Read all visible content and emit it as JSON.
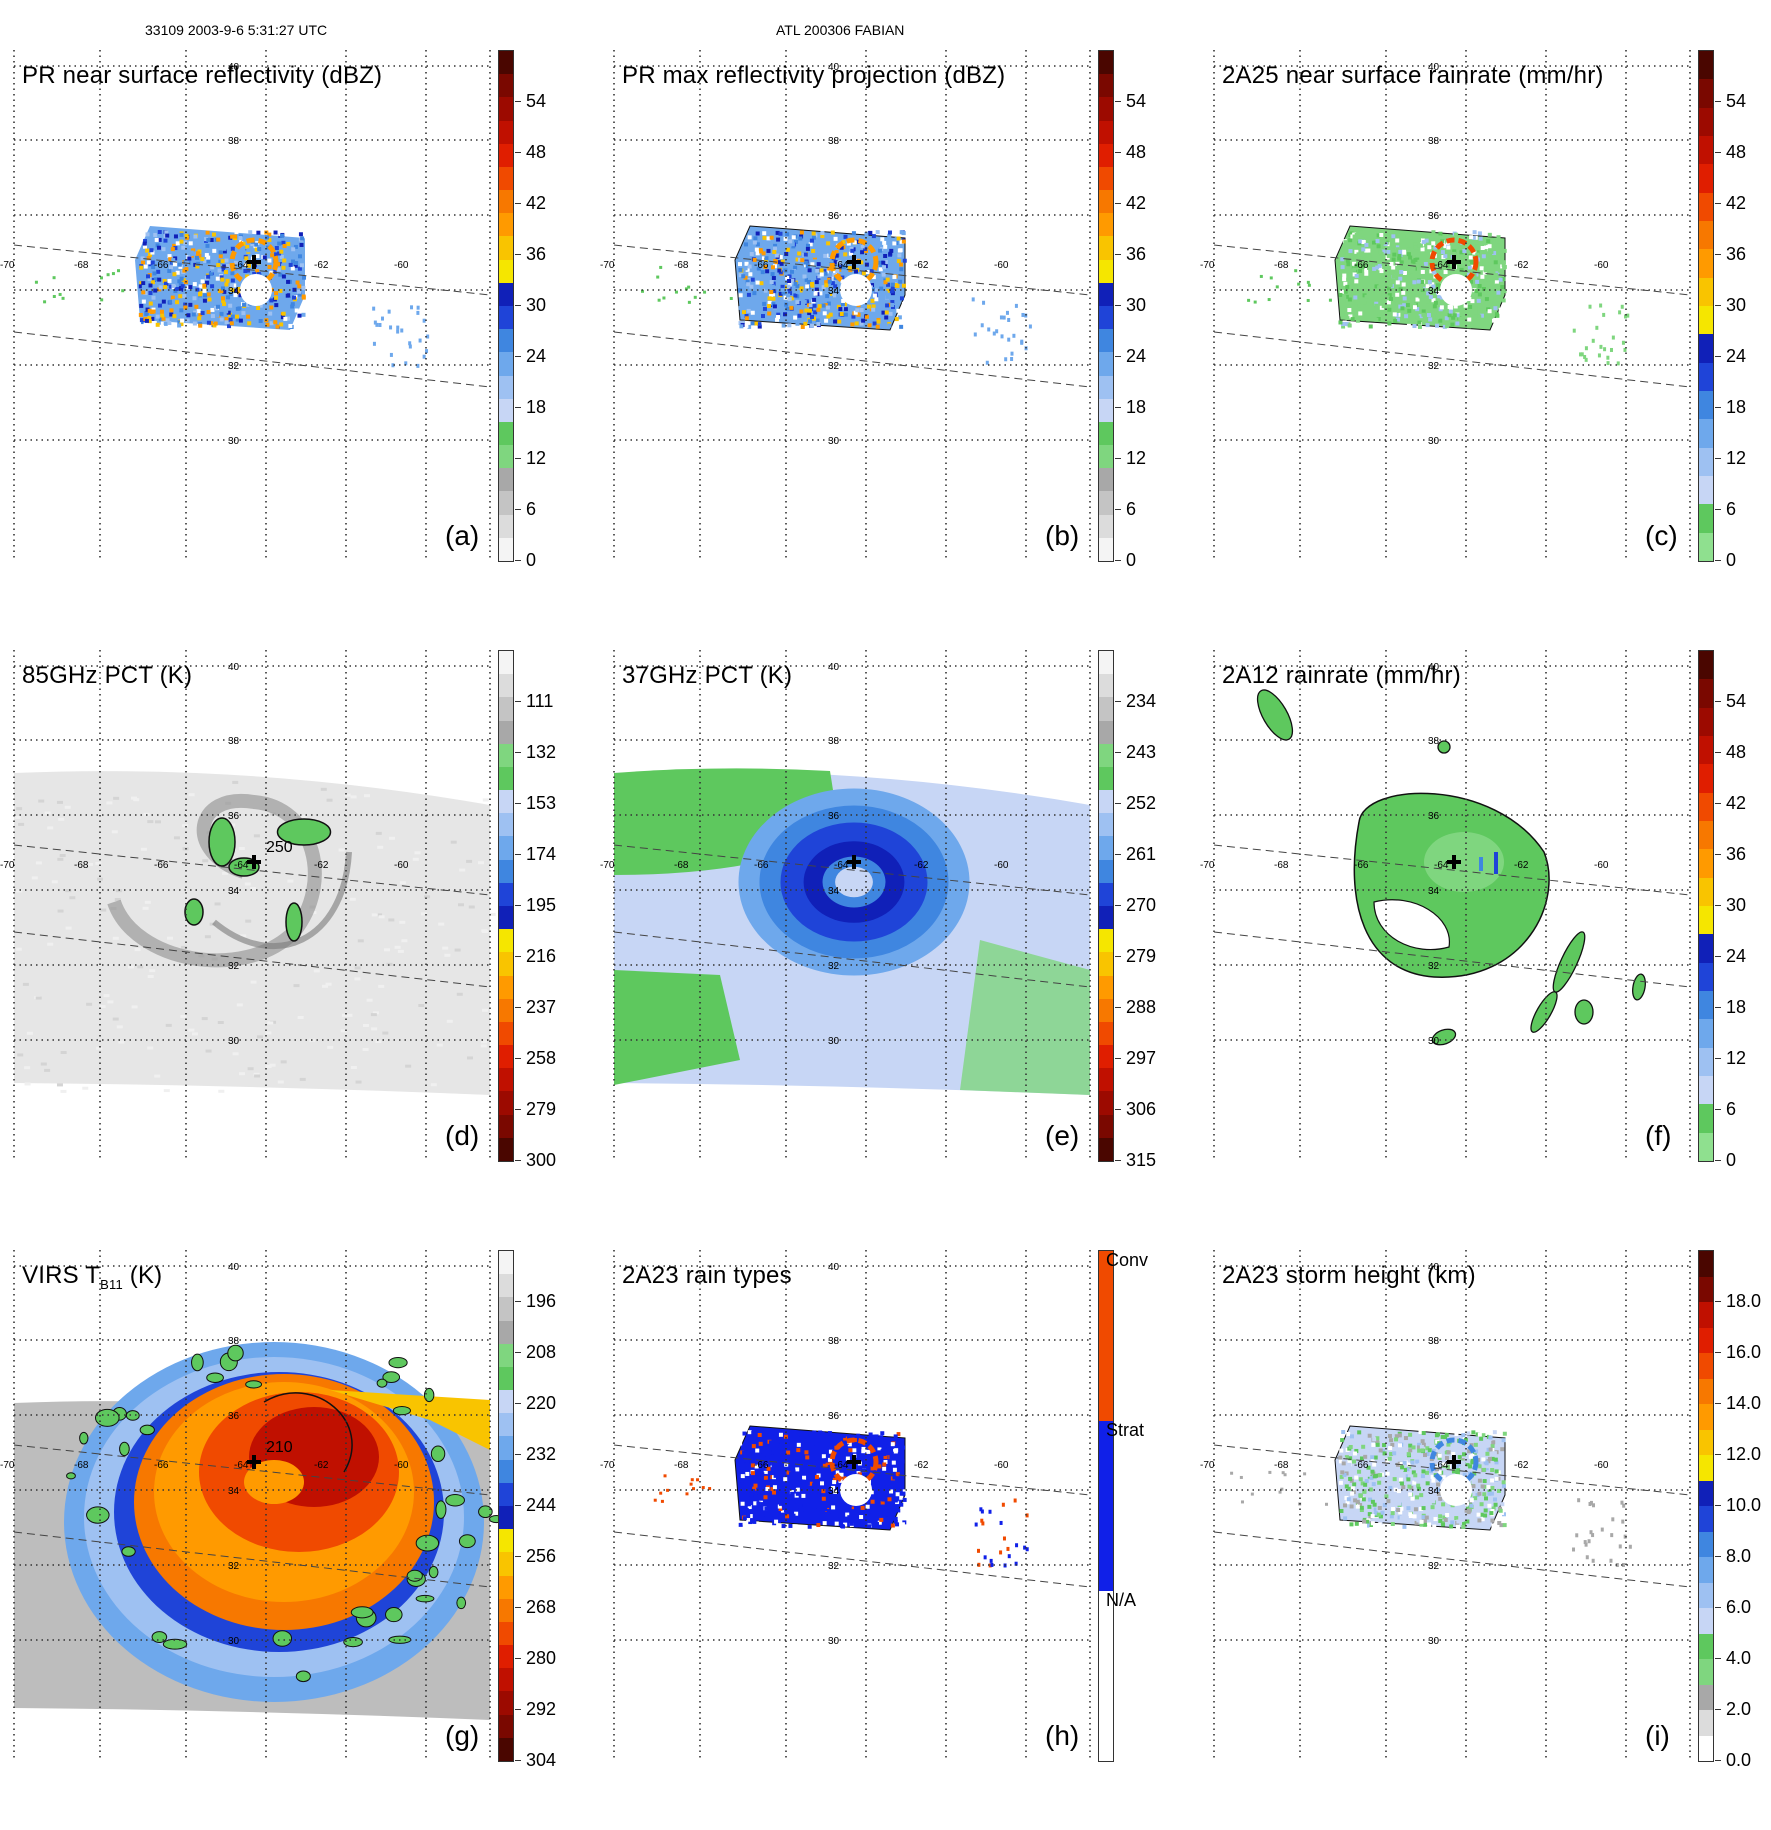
{
  "header": {
    "orbit_time": "33109 2003-9-6 5:31:27 UTC",
    "storm": "ATL 200306 FABIAN"
  },
  "palettes": {
    "refl": [
      "#f4f4f4",
      "#dcdcdc",
      "#c4c4c4",
      "#a8a8a8",
      "#7fd67f",
      "#5ec85e",
      "#c7d6f5",
      "#9ec1f2",
      "#6ea8ec",
      "#3f86e0",
      "#1f44d8",
      "#1020b8",
      "#f5e600",
      "#f9c400",
      "#ff9a00",
      "#f77800",
      "#f04a00",
      "#e01e00",
      "#c01000",
      "#9c0a00",
      "#7a0800",
      "#4a0600"
    ],
    "rain": [
      "#8fe08f",
      "#5ec85e",
      "#c7d6f5",
      "#9ec1f2",
      "#6ea8ec",
      "#3f86e0",
      "#1f44d8",
      "#1020b8",
      "#f5e600",
      "#f9c400",
      "#ff9a00",
      "#f77800",
      "#f04a00",
      "#e01e00",
      "#c01000",
      "#9c0a00",
      "#7a0800",
      "#4a0600"
    ],
    "pct": [
      "#4a0600",
      "#7a0800",
      "#9c0a00",
      "#c01000",
      "#e01e00",
      "#f04a00",
      "#f77800",
      "#ff9a00",
      "#f9c400",
      "#f5e600",
      "#1020b8",
      "#1f44d8",
      "#3f86e0",
      "#6ea8ec",
      "#9ec1f2",
      "#c7d6f5",
      "#5ec85e",
      "#7fd67f",
      "#a8a8a8",
      "#c4c4c4",
      "#dcdcdc",
      "#f4f4f4"
    ],
    "virs": [
      "#4a0600",
      "#7a0800",
      "#9c0a00",
      "#c01000",
      "#e01e00",
      "#f04a00",
      "#f77800",
      "#ff9a00",
      "#f9c400",
      "#f5e600",
      "#1020b8",
      "#1f44d8",
      "#3f86e0",
      "#6ea8ec",
      "#9ec1f2",
      "#c7d6f5",
      "#5ec85e",
      "#7fd67f",
      "#a8a8a8",
      "#c4c4c4",
      "#dcdcdc",
      "#f4f4f4"
    ],
    "types": [
      "#ffffff",
      "#1020e8",
      "#f04a00"
    ],
    "height": [
      "#ffffff",
      "#dcdcdc",
      "#a8a8a8",
      "#7fd67f",
      "#5ec85e",
      "#c7d6f5",
      "#9ec1f2",
      "#6ea8ec",
      "#3f86e0",
      "#1f44d8",
      "#1020b8",
      "#f5e600",
      "#f9c400",
      "#ff9a00",
      "#f77800",
      "#f04a00",
      "#e01e00",
      "#c01000",
      "#7a0800",
      "#4a0600"
    ]
  },
  "panels": [
    {
      "id": "a",
      "title": "PR near surface reflectivity (dBZ)",
      "letter": "(a)",
      "palette": "refl",
      "kind": "swath",
      "colorbar": [
        "54",
        "48",
        "42",
        "36",
        "30",
        "24",
        "18",
        "12",
        "6",
        "0"
      ]
    },
    {
      "id": "b",
      "title": "PR max reflectivity projection (dBZ)",
      "letter": "(b)",
      "palette": "refl",
      "kind": "swath",
      "colorbar": [
        "54",
        "48",
        "42",
        "36",
        "30",
        "24",
        "18",
        "12",
        "6",
        "0"
      ]
    },
    {
      "id": "c",
      "title": "2A25 near surface rainrate (mm/hr)",
      "letter": "(c)",
      "palette": "rain",
      "kind": "swath",
      "colorbar": [
        "54",
        "48",
        "42",
        "36",
        "30",
        "24",
        "18",
        "12",
        "6",
        "0"
      ]
    },
    {
      "id": "d",
      "title": "85GHz PCT (K)",
      "letter": "(d)",
      "palette": "pct",
      "kind": "pct85",
      "colorbar": [
        "111",
        "132",
        "153",
        "174",
        "195",
        "216",
        "237",
        "258",
        "279",
        "300"
      ],
      "contour_label": "250"
    },
    {
      "id": "e",
      "title": "37GHz PCT (K)",
      "letter": "(e)",
      "palette": "pct",
      "kind": "pct37",
      "colorbar": [
        "234",
        "243",
        "252",
        "261",
        "270",
        "279",
        "288",
        "297",
        "306",
        "315"
      ]
    },
    {
      "id": "f",
      "title": "2A12 rainrate (mm/hr)",
      "letter": "(f)",
      "palette": "rain",
      "kind": "tmi_rain",
      "colorbar": [
        "54",
        "48",
        "42",
        "36",
        "30",
        "24",
        "18",
        "12",
        "6",
        "0"
      ]
    },
    {
      "id": "g",
      "title": "VIRS T",
      "title_sub": "B11",
      "title_tail": " (K)",
      "letter": "(g)",
      "palette": "virs",
      "kind": "virs",
      "colorbar": [
        "196",
        "208",
        "220",
        "232",
        "244",
        "256",
        "268",
        "280",
        "292",
        "304"
      ],
      "contour_label": "210"
    },
    {
      "id": "h",
      "title": "2A23 rain types",
      "letter": "(h)",
      "palette": "types",
      "kind": "types",
      "colorbar": [
        "Conv",
        "Strat",
        "N/A"
      ]
    },
    {
      "id": "i",
      "title": "2A23 storm height (km)",
      "letter": "(i)",
      "palette": "height",
      "kind": "height",
      "colorbar": [
        "18.0",
        "16.0",
        "14.0",
        "12.0",
        "10.0",
        "8.0",
        "6.0",
        "4.0",
        "2.0",
        "0.0"
      ]
    }
  ],
  "map_axes": {
    "lat_labels": [
      "40",
      "38",
      "36",
      "34",
      "32",
      "30"
    ],
    "lon_labels": [
      "-70",
      "-68",
      "-66",
      "-64",
      "-62",
      "-60"
    ],
    "center_lon": "-64",
    "center_lat": "34"
  }
}
